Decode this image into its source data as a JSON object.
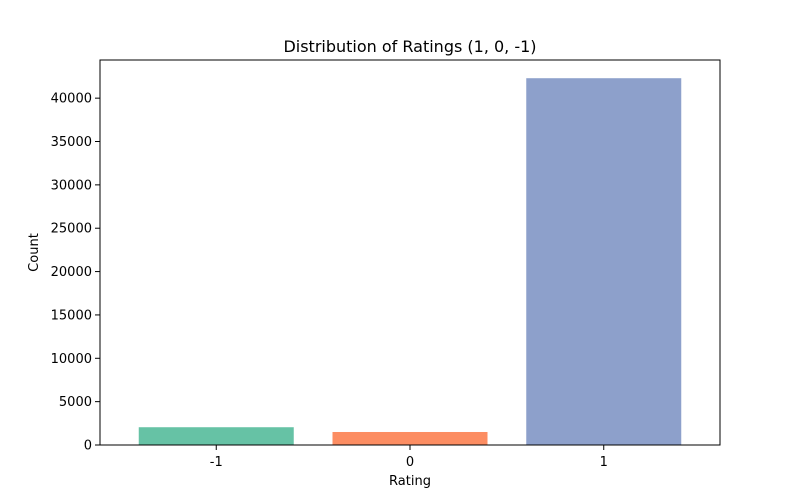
{
  "chart_data": {
    "type": "bar",
    "title": "Distribution of Ratings (1, 0, -1)",
    "xlabel": "Rating",
    "ylabel": "Count",
    "categories": [
      "-1",
      "0",
      "1"
    ],
    "values": [
      2050,
      1500,
      42300
    ],
    "colors": [
      "#66c2a5",
      "#fc8d62",
      "#8da0cb"
    ],
    "ylim": [
      0,
      44400
    ],
    "yticks": [
      0,
      5000,
      10000,
      15000,
      20000,
      25000,
      30000,
      35000,
      40000
    ],
    "ytick_labels": [
      "0",
      "5000",
      "10000",
      "15000",
      "20000",
      "25000",
      "30000",
      "35000",
      "40000"
    ],
    "grid": false,
    "legend": "none"
  }
}
